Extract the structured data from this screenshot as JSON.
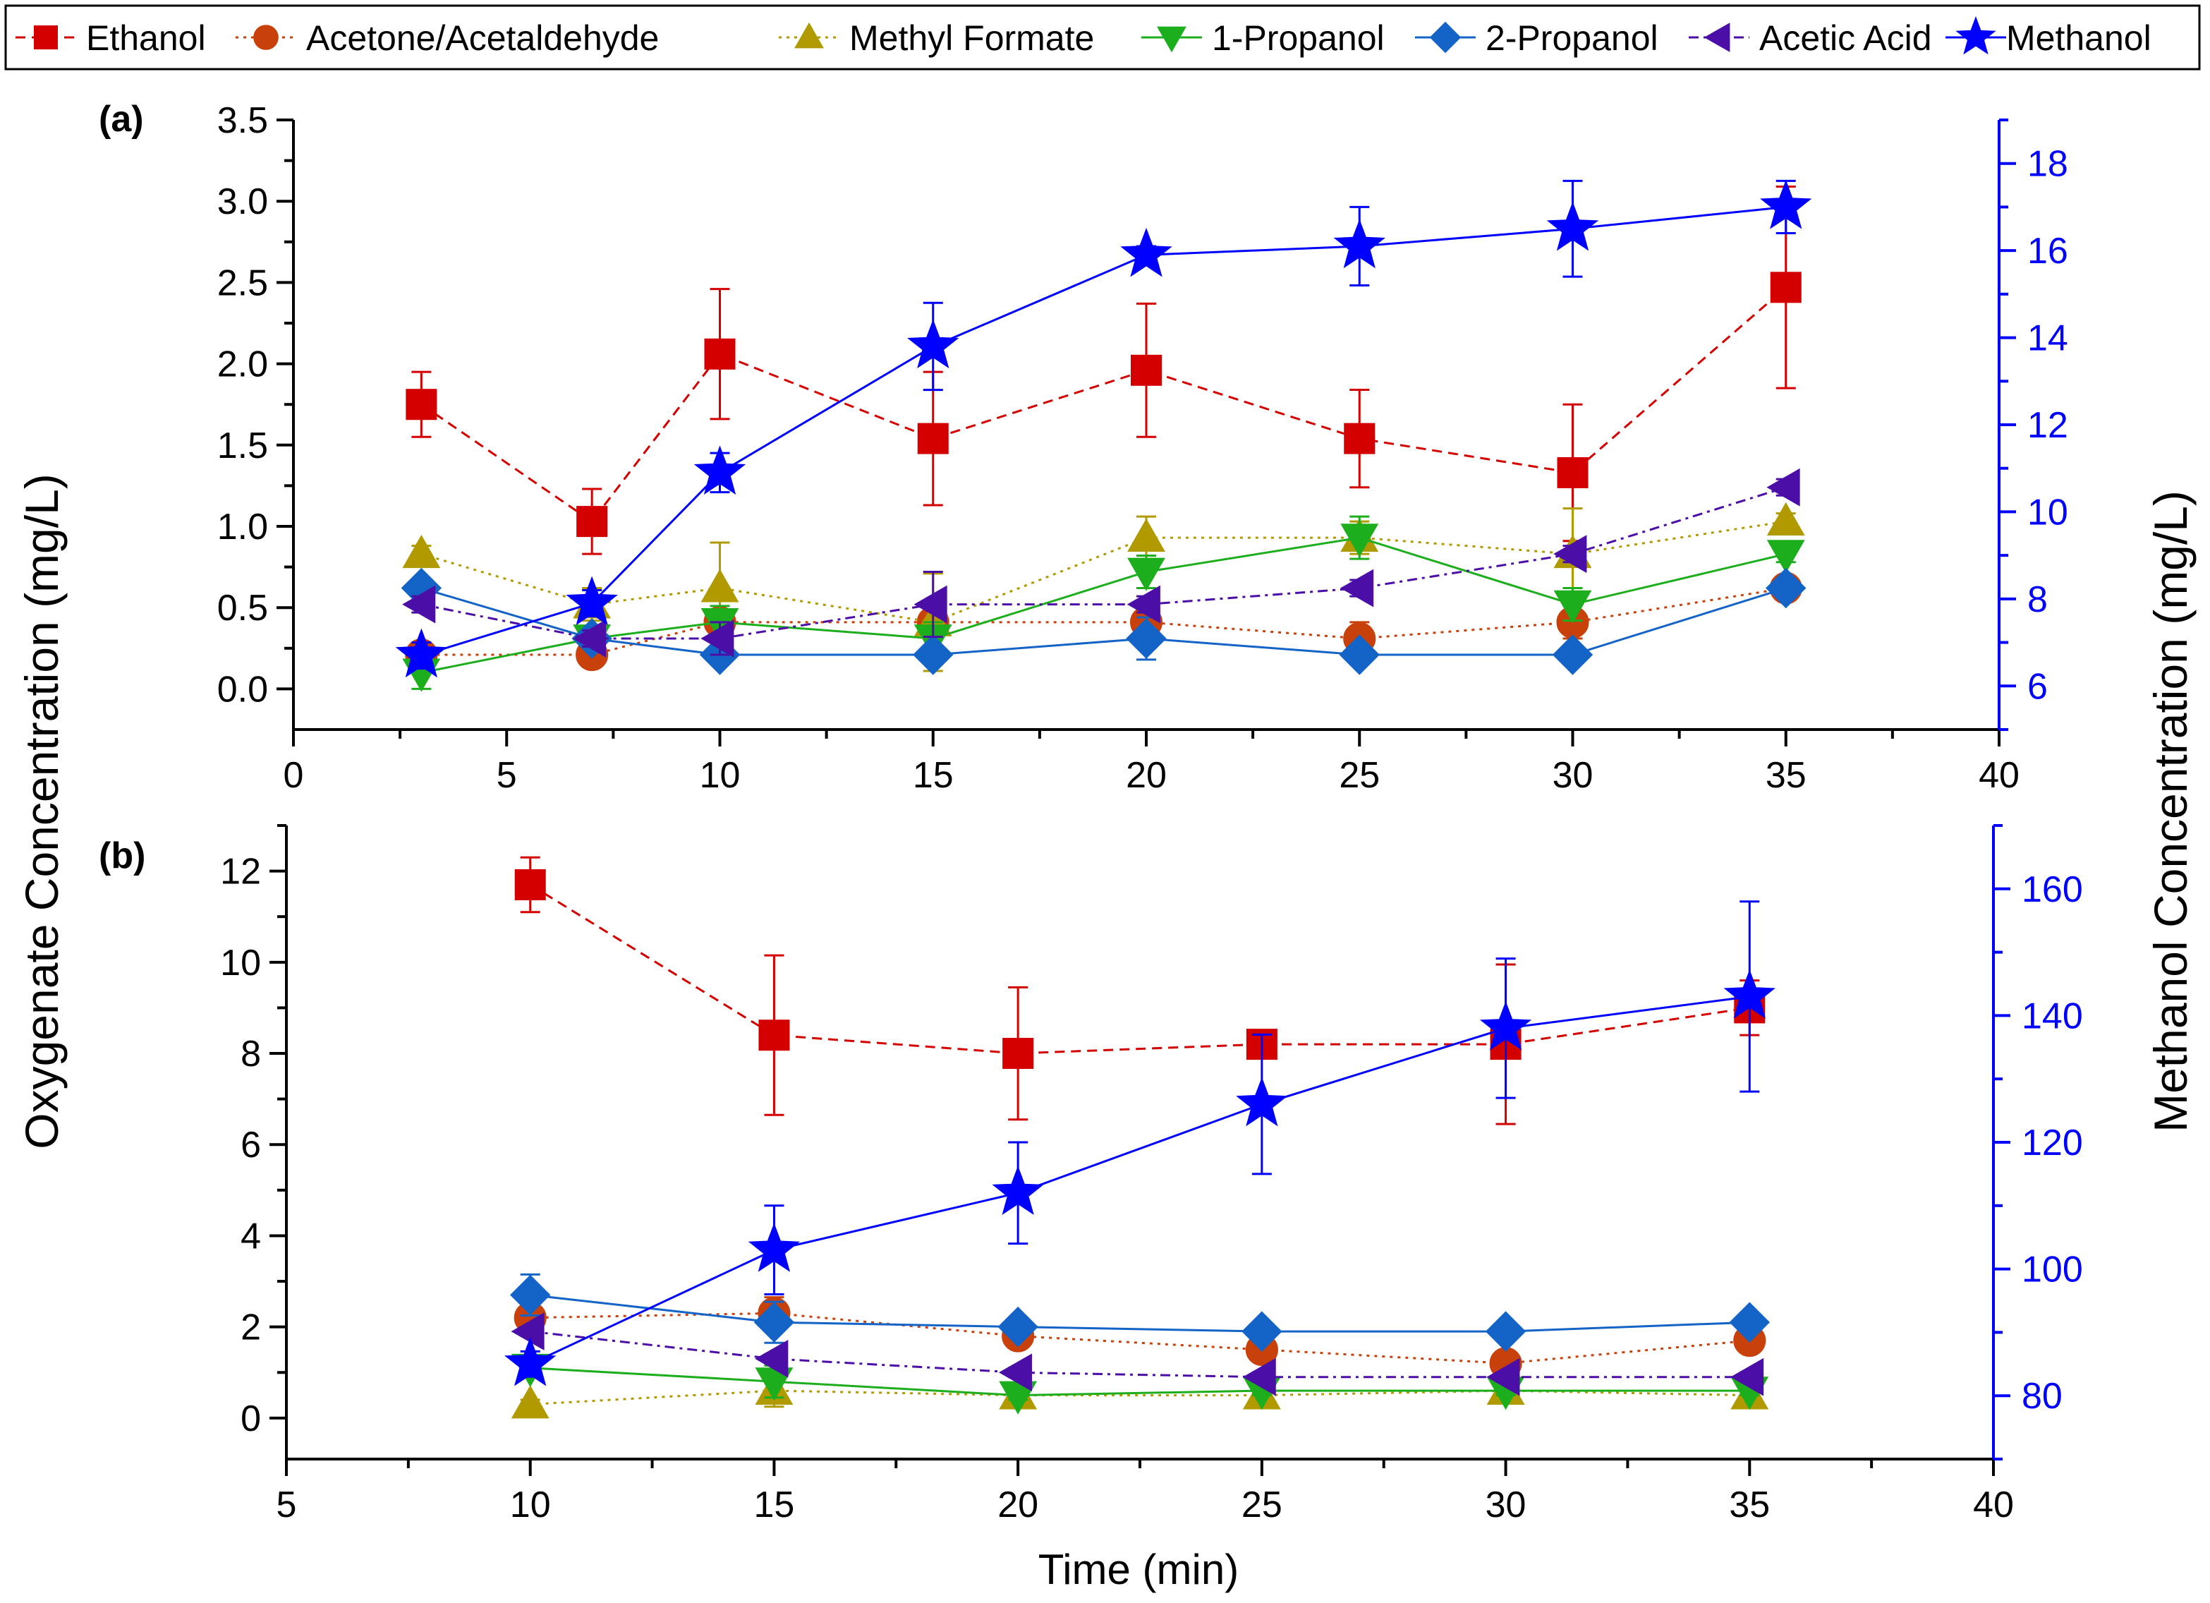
{
  "chart_data": {
    "type": "line",
    "legend": [
      {
        "name": "Ethanol",
        "color": "#d40000",
        "marker": "square",
        "dash": "dash"
      },
      {
        "name": "Acetone/Acetaldehyde",
        "color": "#c8400a",
        "marker": "circle",
        "dash": "dot"
      },
      {
        "name": "Methyl Formate",
        "color": "#b09a00",
        "marker": "triangle-up",
        "dash": "dot"
      },
      {
        "name": "1-Propanol",
        "color": "#1cae1c",
        "marker": "triangle-down",
        "dash": "solid"
      },
      {
        "name": "2-Propanol",
        "color": "#1464c8",
        "marker": "diamond",
        "dash": "solid"
      },
      {
        "name": "Acetic Acid",
        "color": "#4b0fa8",
        "marker": "triangle-left",
        "dash": "dashdot"
      },
      {
        "name": "Methanol",
        "color": "#0000ff",
        "marker": "star",
        "dash": "solid"
      }
    ],
    "ylabel_left": "Oxygenate Concentration (mg/L)",
    "ylabel_right": "Methanol Concentration (mg/L)",
    "xlabel": "Time (min)",
    "panels": [
      {
        "label": "(a)",
        "xlim": [
          0,
          40
        ],
        "xticks": [
          "0",
          "5",
          "10",
          "15",
          "20",
          "25",
          "30",
          "35",
          "40"
        ],
        "ylim_left": [
          -0.25,
          3.5
        ],
        "yticks_left": [
          "0.0",
          "0.5",
          "1.0",
          "1.5",
          "2.0",
          "2.5",
          "3.0",
          "3.5"
        ],
        "ylim_right": [
          5,
          19
        ],
        "yticks_right": [
          "6",
          "8",
          "10",
          "12",
          "14",
          "16",
          "18"
        ],
        "x": [
          3,
          7,
          10,
          15,
          20,
          25,
          30,
          35
        ],
        "series": [
          {
            "name": "Ethanol",
            "axis": "left",
            "values": [
              1.75,
              1.03,
              2.06,
              1.54,
              1.96,
              1.54,
              1.33,
              2.47
            ],
            "errors": [
              0.2,
              0.2,
              0.4,
              0.41,
              0.41,
              0.3,
              0.42,
              0.62
            ]
          },
          {
            "name": "Acetone/Acetaldehyde",
            "axis": "left",
            "values": [
              0.21,
              0.21,
              0.41,
              0.41,
              0.41,
              0.31,
              0.41,
              0.62
            ],
            "errors": [
              0.05,
              0.05,
              0.05,
              0.05,
              0.05,
              0.1,
              0.1,
              0.05
            ]
          },
          {
            "name": "Methyl Formate",
            "axis": "left",
            "values": [
              0.83,
              0.52,
              0.62,
              0.41,
              0.93,
              0.93,
              0.83,
              1.03
            ],
            "errors": [
              0.05,
              0.1,
              0.28,
              0.3,
              0.13,
              0.1,
              0.28,
              0.05
            ]
          },
          {
            "name": "1-Propanol",
            "axis": "left",
            "values": [
              0.1,
              0.31,
              0.41,
              0.31,
              0.72,
              0.93,
              0.52,
              0.83
            ],
            "errors": [
              0.1,
              0.05,
              0.1,
              0.1,
              0.1,
              0.13,
              0.1,
              0.05
            ]
          },
          {
            "name": "2-Propanol",
            "axis": "left",
            "values": [
              0.62,
              0.31,
              0.21,
              0.21,
              0.31,
              0.21,
              0.21,
              0.62
            ],
            "errors": [
              0.05,
              0.05,
              0.05,
              0.05,
              0.13,
              0.05,
              0.05,
              0.05
            ]
          },
          {
            "name": "Acetic Acid",
            "axis": "left",
            "values": [
              0.52,
              0.31,
              0.31,
              0.52,
              0.52,
              0.62,
              0.83,
              1.24
            ],
            "errors": [
              0.05,
              0.05,
              0.1,
              0.2,
              0.05,
              0.05,
              0.05,
              0.05
            ]
          },
          {
            "name": "Methanol",
            "axis": "right",
            "values": [
              6.7,
              7.9,
              10.9,
              13.8,
              15.9,
              16.1,
              16.5,
              17.0
            ],
            "errors": [
              0.3,
              0.3,
              0.45,
              1.0,
              0.2,
              0.9,
              1.1,
              0.6
            ]
          }
        ]
      },
      {
        "label": "(b)",
        "xlim": [
          5,
          40
        ],
        "xticks": [
          "5",
          "10",
          "15",
          "20",
          "25",
          "30",
          "35",
          "40"
        ],
        "ylim_left": [
          -0.9,
          13
        ],
        "yticks_left": [
          "0",
          "2",
          "4",
          "6",
          "8",
          "10",
          "12"
        ],
        "ylim_right": [
          70,
          170
        ],
        "yticks_right": [
          "80",
          "100",
          "120",
          "140",
          "160"
        ],
        "x": [
          10,
          15,
          20,
          25,
          30,
          35
        ],
        "series": [
          {
            "name": "Ethanol",
            "axis": "left",
            "values": [
              11.7,
              8.4,
              8.0,
              8.2,
              8.2,
              9.0
            ],
            "errors": [
              0.6,
              1.75,
              1.45,
              0.2,
              1.75,
              0.6
            ]
          },
          {
            "name": "Acetone/Acetaldehyde",
            "axis": "left",
            "values": [
              2.2,
              2.3,
              1.8,
              1.5,
              1.2,
              1.7
            ],
            "errors": [
              0.1,
              0.35,
              0.1,
              0.1,
              0.1,
              0.1
            ]
          },
          {
            "name": "Methyl Formate",
            "axis": "left",
            "values": [
              0.3,
              0.6,
              0.5,
              0.5,
              0.6,
              0.5
            ],
            "errors": [
              0.1,
              0.35,
              0.1,
              0.1,
              0.1,
              0.1
            ]
          },
          {
            "name": "1-Propanol",
            "axis": "left",
            "values": [
              1.1,
              0.8,
              0.5,
              0.6,
              0.6,
              0.6
            ],
            "errors": [
              0.1,
              0.35,
              0.1,
              0.1,
              0.1,
              0.1
            ]
          },
          {
            "name": "2-Propanol",
            "axis": "left",
            "values": [
              2.7,
              2.1,
              2.0,
              1.9,
              1.9,
              2.1
            ],
            "errors": [
              0.45,
              0.45,
              0.1,
              0.1,
              0.1,
              0.1
            ]
          },
          {
            "name": "Acetic Acid",
            "axis": "left",
            "values": [
              1.9,
              1.3,
              1.0,
              0.9,
              0.9,
              0.9
            ],
            "errors": [
              0.1,
              0.1,
              0.1,
              0.1,
              0.1,
              0.1
            ]
          },
          {
            "name": "Methanol",
            "axis": "right",
            "values": [
              85,
              103,
              112,
              126,
              138,
              143
            ],
            "errors": [
              2,
              7,
              8,
              11,
              11,
              15
            ]
          }
        ]
      }
    ]
  }
}
